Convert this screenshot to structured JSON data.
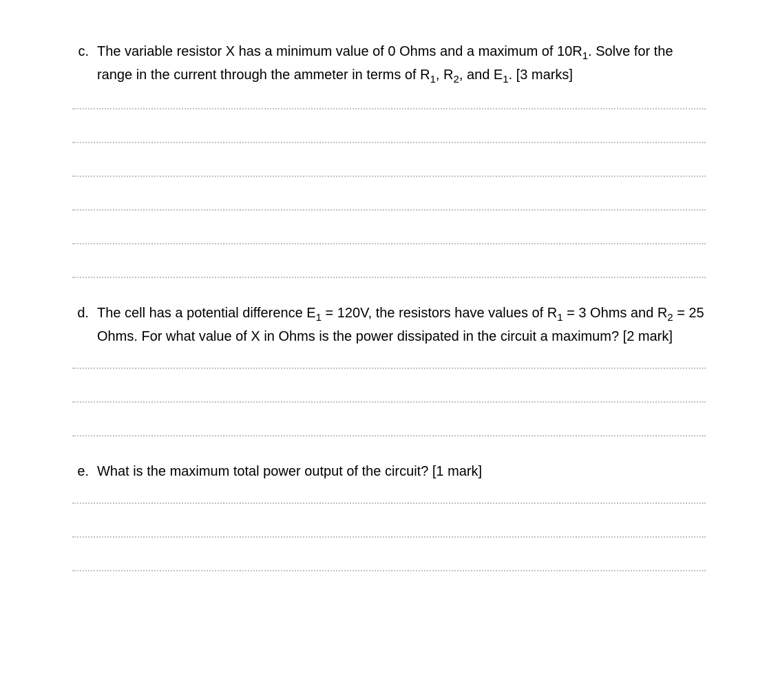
{
  "questions": {
    "c": {
      "label": "c.",
      "text_before_sub1": "The variable resistor X has a minimum value of 0 Ohms and a maximum of 10R",
      "sub1": "1",
      "text_after_sub1": ". Solve for the range in the current through the ammeter in terms of R",
      "sub2": "1",
      "text_mid2": ", R",
      "sub3": "2",
      "text_mid3": ", and E",
      "sub4": "1",
      "text_end": ". [3 marks]",
      "answer_line_count": 6
    },
    "d": {
      "label": "d.",
      "text_before_sub1": "The cell has a potential difference E",
      "sub1": "1",
      "text_mid1": " = 120V, the resistors have values of R",
      "sub2": "1",
      "text_mid2": " = 3 Ohms and R",
      "sub3": "2",
      "text_end": " = 25 Ohms. For what value of X in Ohms is the power dissipated in the circuit a maximum? [2 mark]",
      "answer_line_count": 3
    },
    "e": {
      "label": "e.",
      "text": "What is the maximum total power output of the circuit? [1 mark]",
      "answer_line_count": 3
    }
  },
  "styles": {
    "text_color": "#000000",
    "dotted_line_color": "#c0c0c0",
    "background_color": "#ffffff",
    "font_size": 20,
    "line_spacing": 47
  }
}
